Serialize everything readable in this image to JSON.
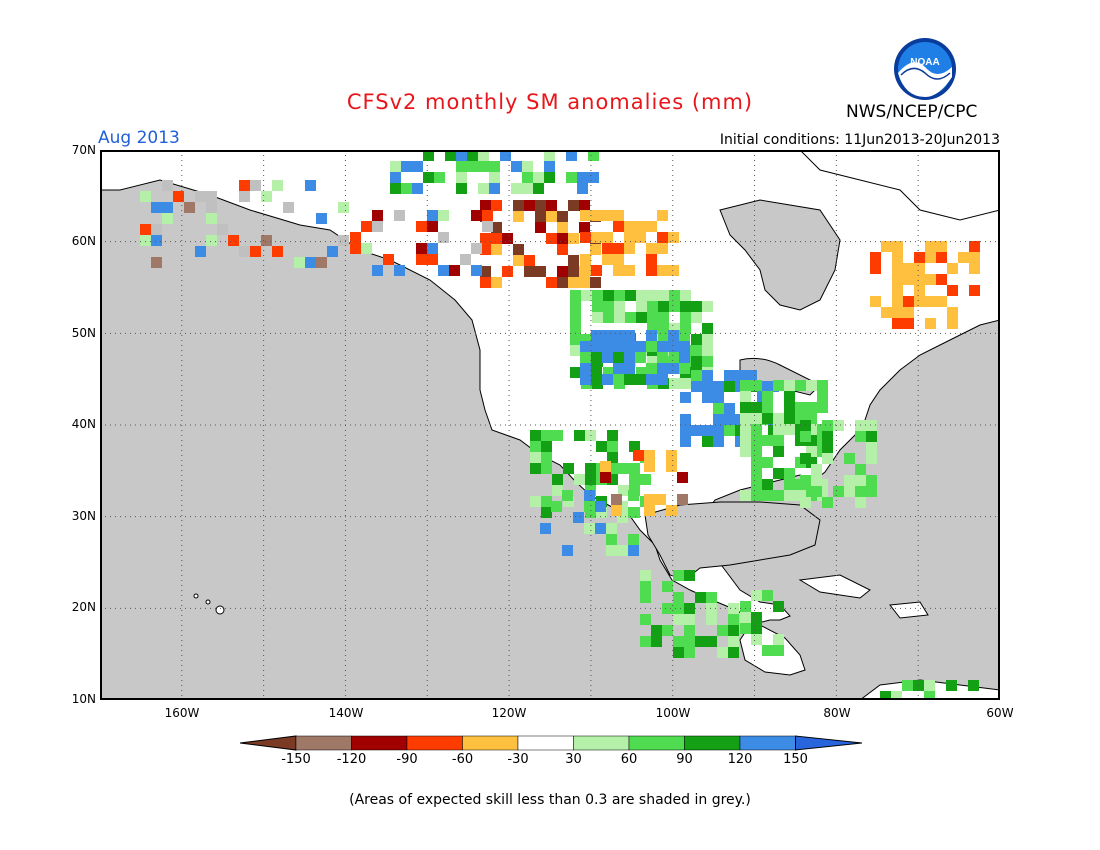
{
  "header": {
    "title": "CFSv2 monthly SM anomalies (mm)",
    "valid_month": "Aug 2013",
    "initial_conditions": "Initial conditions: 11Jun2013-20Jun2013",
    "agency": "NWS/NCEP/CPC",
    "logo_text": "NOAA"
  },
  "map": {
    "lat_ticks": [
      "70N",
      "60N",
      "50N",
      "40N",
      "30N",
      "20N",
      "10N"
    ],
    "lon_ticks": [
      "160W",
      "140W",
      "120W",
      "100W",
      "80W",
      "60W"
    ],
    "extent": {
      "lon_min": -170,
      "lon_max": -60,
      "lat_min": 10,
      "lat_max": 70
    },
    "ocean_color": "#c8c8c8",
    "land_color": "#ffffff",
    "skill_grey": "#c0c0c0"
  },
  "colorbar": {
    "labels": [
      "-150",
      "-120",
      "-90",
      "-60",
      "-30",
      "30",
      "60",
      "90",
      "120",
      "150"
    ],
    "colors": [
      "#7a3a24",
      "#a07868",
      "#a00000",
      "#ff3c00",
      "#ffc040",
      "#ffffff",
      "#b4f0a8",
      "#50dc50",
      "#14a014",
      "#3c8ce6",
      "#2864dc"
    ]
  },
  "footnote": "(Areas of expected skill less than 0.3 are shaded in grey.)"
}
